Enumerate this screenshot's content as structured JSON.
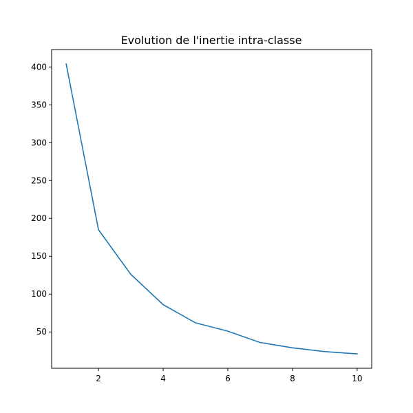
{
  "chart_data": {
    "type": "line",
    "title": "Evolution de l'inertie intra-classe",
    "xlabel": "",
    "ylabel": "",
    "x": [
      1,
      2,
      3,
      4,
      5,
      6,
      7,
      8,
      9,
      10
    ],
    "series": [
      {
        "values": [
          404,
          185,
          126,
          86,
          62,
          51,
          36,
          29,
          24,
          21
        ]
      }
    ],
    "xlim": [
      0.55,
      10.45
    ],
    "ylim": [
      2,
      423
    ],
    "x_ticks": [
      2,
      4,
      6,
      8,
      10
    ],
    "y_ticks": [
      50,
      100,
      150,
      200,
      250,
      300,
      350,
      400
    ],
    "grid": false,
    "line_color": "#1f77b4"
  }
}
